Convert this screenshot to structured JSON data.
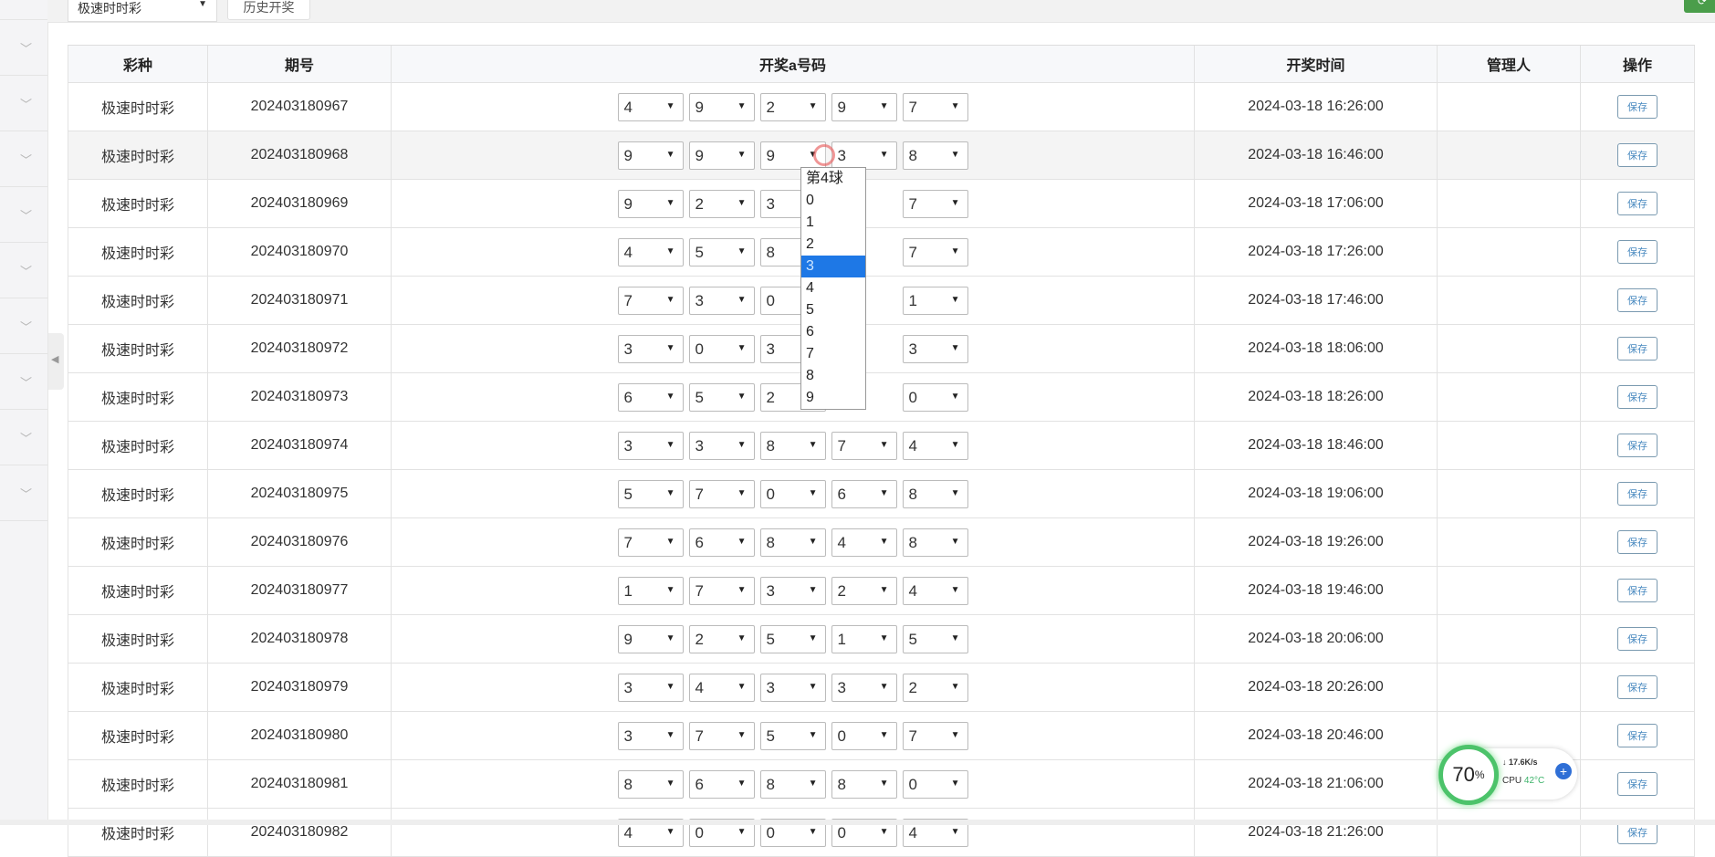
{
  "topbar": {
    "lottery_select": "极速时时彩",
    "history_button": "历史开奖",
    "refresh_icon": "refresh-icon"
  },
  "table": {
    "headers": [
      "彩种",
      "期号",
      "开奖a号码",
      "开奖时间",
      "管理人",
      "操作"
    ],
    "save_label": "保存",
    "rows": [
      {
        "type": "极速时时彩",
        "issue": "202403180967",
        "numbers": [
          "4",
          "9",
          "2",
          "9",
          "7"
        ],
        "time": "2024-03-18 16:26:00",
        "manager": ""
      },
      {
        "type": "极速时时彩",
        "issue": "202403180968",
        "numbers": [
          "9",
          "9",
          "9",
          "3",
          "8"
        ],
        "time": "2024-03-18 16:46:00",
        "manager": ""
      },
      {
        "type": "极速时时彩",
        "issue": "202403180969",
        "numbers": [
          "9",
          "2",
          "3",
          "",
          "7"
        ],
        "time": "2024-03-18 17:06:00",
        "manager": ""
      },
      {
        "type": "极速时时彩",
        "issue": "202403180970",
        "numbers": [
          "4",
          "5",
          "8",
          "",
          "7"
        ],
        "time": "2024-03-18 17:26:00",
        "manager": ""
      },
      {
        "type": "极速时时彩",
        "issue": "202403180971",
        "numbers": [
          "7",
          "3",
          "0",
          "",
          "1"
        ],
        "time": "2024-03-18 17:46:00",
        "manager": ""
      },
      {
        "type": "极速时时彩",
        "issue": "202403180972",
        "numbers": [
          "3",
          "0",
          "3",
          "",
          "3"
        ],
        "time": "2024-03-18 18:06:00",
        "manager": ""
      },
      {
        "type": "极速时时彩",
        "issue": "202403180973",
        "numbers": [
          "6",
          "5",
          "2",
          "",
          "0"
        ],
        "time": "2024-03-18 18:26:00",
        "manager": ""
      },
      {
        "type": "极速时时彩",
        "issue": "202403180974",
        "numbers": [
          "3",
          "3",
          "8",
          "7",
          "4"
        ],
        "time": "2024-03-18 18:46:00",
        "manager": ""
      },
      {
        "type": "极速时时彩",
        "issue": "202403180975",
        "numbers": [
          "5",
          "7",
          "0",
          "6",
          "8"
        ],
        "time": "2024-03-18 19:06:00",
        "manager": ""
      },
      {
        "type": "极速时时彩",
        "issue": "202403180976",
        "numbers": [
          "7",
          "6",
          "8",
          "4",
          "8"
        ],
        "time": "2024-03-18 19:26:00",
        "manager": ""
      },
      {
        "type": "极速时时彩",
        "issue": "202403180977",
        "numbers": [
          "1",
          "7",
          "3",
          "2",
          "4"
        ],
        "time": "2024-03-18 19:46:00",
        "manager": ""
      },
      {
        "type": "极速时时彩",
        "issue": "202403180978",
        "numbers": [
          "9",
          "2",
          "5",
          "1",
          "5"
        ],
        "time": "2024-03-18 20:06:00",
        "manager": ""
      },
      {
        "type": "极速时时彩",
        "issue": "202403180979",
        "numbers": [
          "3",
          "4",
          "3",
          "3",
          "2"
        ],
        "time": "2024-03-18 20:26:00",
        "manager": ""
      },
      {
        "type": "极速时时彩",
        "issue": "202403180980",
        "numbers": [
          "3",
          "7",
          "5",
          "0",
          "7"
        ],
        "time": "2024-03-18 20:46:00",
        "manager": ""
      },
      {
        "type": "极速时时彩",
        "issue": "202403180981",
        "numbers": [
          "8",
          "6",
          "8",
          "8",
          "0"
        ],
        "time": "2024-03-18 21:06:00",
        "manager": ""
      },
      {
        "type": "极速时时彩",
        "issue": "202403180982",
        "numbers": [
          "4",
          "0",
          "0",
          "0",
          "4"
        ],
        "time": "2024-03-18 21:26:00",
        "manager": ""
      }
    ]
  },
  "dropdown": {
    "options": [
      "第4球",
      "0",
      "1",
      "2",
      "3",
      "4",
      "5",
      "6",
      "7",
      "8",
      "9"
    ],
    "selected": "3"
  },
  "cpu_widget": {
    "percent": "70",
    "unit": "%",
    "net": "↓ 17.6K/s",
    "cpu_label": "CPU",
    "temp": "42°C",
    "ring_color": "#4cc36a"
  },
  "colors": {
    "selected_option": "#1e78e6",
    "save_button": "#4a8ac0"
  }
}
